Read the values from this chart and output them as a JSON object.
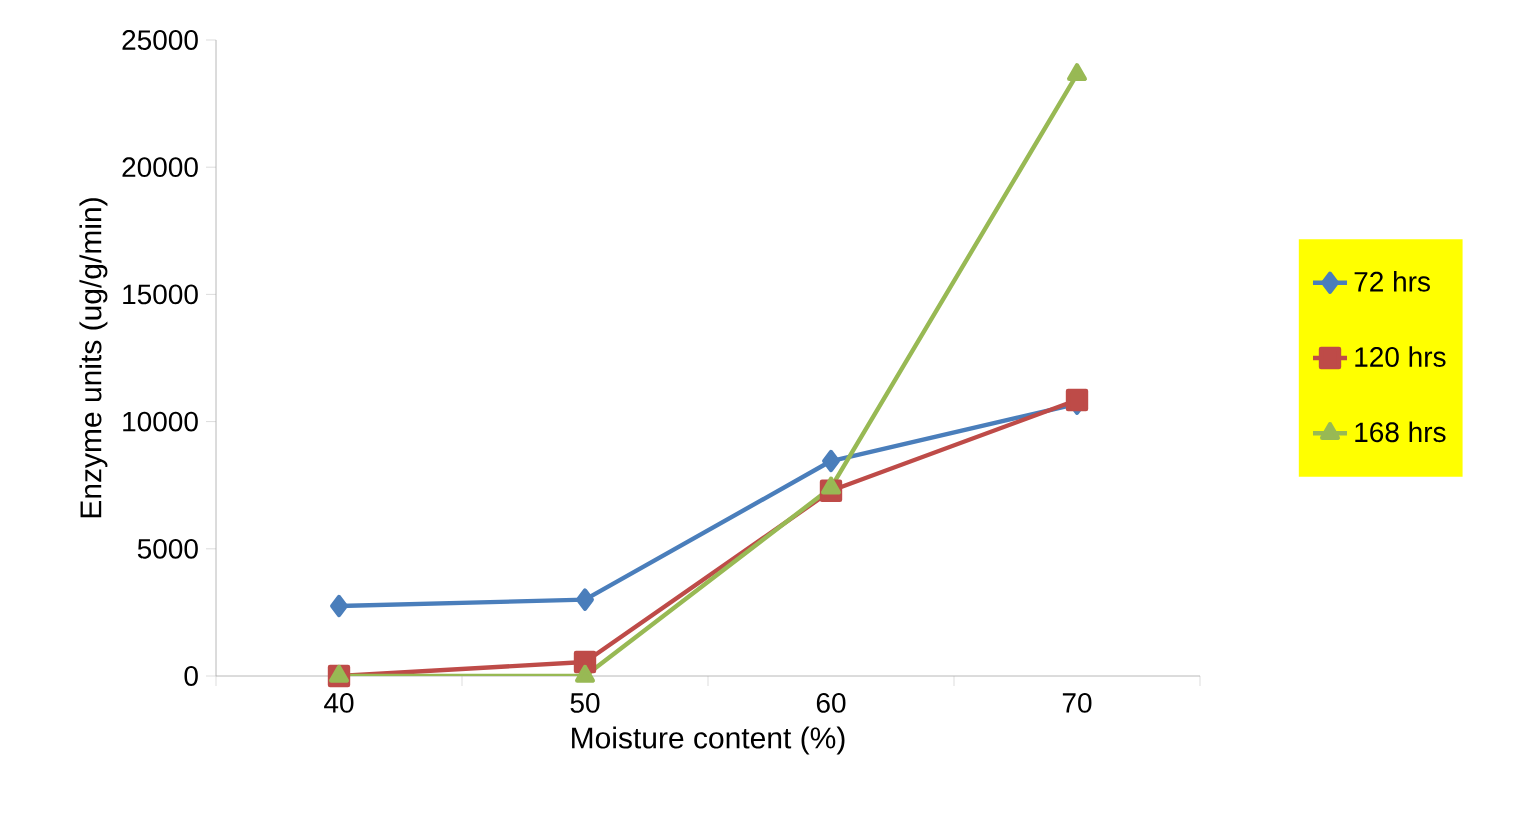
{
  "chart_data": {
    "type": "line",
    "xlabel": "Moisture content (%)",
    "ylabel": "Enzyme units  (ug/g/min)",
    "categories": [
      "40",
      "50",
      "60",
      "70"
    ],
    "series": [
      {
        "name": "72 hrs",
        "color": "#4a7ebb",
        "marker": "diamond",
        "values": [
          2750,
          3000,
          8450,
          10700
        ]
      },
      {
        "name": "120 hrs",
        "color": "#be4b48",
        "marker": "square",
        "values": [
          0,
          550,
          7280,
          10850
        ]
      },
      {
        "name": "168 hrs",
        "color": "#98b954",
        "marker": "triangle",
        "values": [
          0,
          0,
          7400,
          23650
        ]
      }
    ],
    "ylim": [
      0,
      25000
    ],
    "yticks": [
      0,
      5000,
      10000,
      15000,
      20000,
      25000
    ],
    "grid": false,
    "legend": "right",
    "line_style": "solid"
  }
}
